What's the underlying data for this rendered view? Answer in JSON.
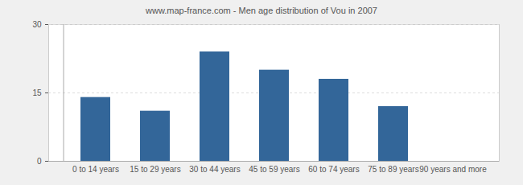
{
  "chart_data": {
    "type": "bar",
    "title": "www.map-france.com - Men age distribution of Vou in 2007",
    "categories": [
      "0 to 14 years",
      "15 to 29 years",
      "30 to 44 years",
      "45 to 59 years",
      "60 to 74 years",
      "75 to 89 years",
      "90 years and more"
    ],
    "values": [
      14,
      11,
      24,
      20,
      18,
      12,
      0
    ],
    "color": "#336699",
    "ylim": [
      0,
      30
    ],
    "yticks": [
      0,
      15,
      30
    ],
    "grid": true
  }
}
